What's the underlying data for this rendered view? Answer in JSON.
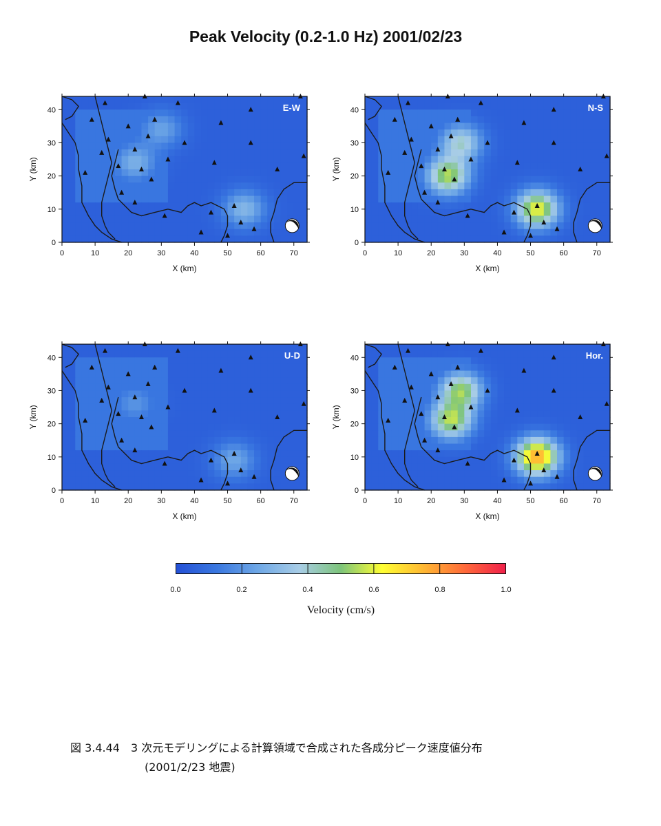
{
  "title": "Peak Velocity (0.2-1.0 Hz) 2001/02/23",
  "chart_data": {
    "type": "heatmap",
    "xlabel": "X (km)",
    "ylabel": "Y (km)",
    "xlim": [
      0,
      74
    ],
    "ylim": [
      0,
      44
    ],
    "x_ticks": [
      "0",
      "10",
      "20",
      "30",
      "40",
      "50",
      "60",
      "70"
    ],
    "y_ticks": [
      "0",
      "10",
      "20",
      "30",
      "40"
    ],
    "panels": [
      {
        "label": "E-W",
        "hotspots": [
          {
            "x": 22,
            "y": 24,
            "v": 0.28
          },
          {
            "x": 30,
            "y": 34,
            "v": 0.24
          },
          {
            "x": 55,
            "y": 10,
            "v": 0.3
          }
        ]
      },
      {
        "label": "N-S",
        "hotspots": [
          {
            "x": 25,
            "y": 20,
            "v": 0.55
          },
          {
            "x": 29,
            "y": 30,
            "v": 0.4
          },
          {
            "x": 52,
            "y": 10,
            "v": 0.62
          }
        ]
      },
      {
        "label": "U-D",
        "hotspots": [
          {
            "x": 22,
            "y": 26,
            "v": 0.2
          },
          {
            "x": 52,
            "y": 9,
            "v": 0.25
          }
        ]
      },
      {
        "label": "Hor.",
        "hotspots": [
          {
            "x": 26,
            "y": 21,
            "v": 0.55
          },
          {
            "x": 29,
            "y": 30,
            "v": 0.52
          },
          {
            "x": 52,
            "y": 10,
            "v": 0.78
          }
        ]
      }
    ],
    "stations": [
      [
        13,
        42
      ],
      [
        25,
        44
      ],
      [
        35,
        42
      ],
      [
        57,
        40
      ],
      [
        72,
        44
      ],
      [
        9,
        37
      ],
      [
        20,
        35
      ],
      [
        28,
        37
      ],
      [
        48,
        36
      ],
      [
        14,
        31
      ],
      [
        26,
        32
      ],
      [
        37,
        30
      ],
      [
        57,
        30
      ],
      [
        12,
        27
      ],
      [
        22,
        28
      ],
      [
        32,
        25
      ],
      [
        46,
        24
      ],
      [
        65,
        22
      ],
      [
        73,
        26
      ],
      [
        7,
        21
      ],
      [
        17,
        23
      ],
      [
        24,
        22
      ],
      [
        27,
        19
      ],
      [
        18,
        15
      ],
      [
        22,
        12
      ],
      [
        31,
        8
      ],
      [
        45,
        9
      ],
      [
        52,
        11
      ],
      [
        54,
        6
      ],
      [
        58,
        4
      ],
      [
        42,
        3
      ],
      [
        50,
        2
      ]
    ],
    "colorbar": {
      "range": [
        0,
        1.0
      ],
      "ticks": [
        "0.0",
        "0.2",
        "0.4",
        "0.6",
        "0.8",
        "1.0"
      ],
      "title": "Velocity (cm/s)",
      "colors": [
        "#2450d6",
        "#3a78e0",
        "#6fa8e6",
        "#a8cde6",
        "#7dc47a",
        "#ffff33",
        "#ffb833",
        "#ff6a3a",
        "#f0204a"
      ]
    }
  },
  "caption": {
    "line1": "図 3.4.44　3 次元モデリングによる計算領域で合成された各成分ピーク速度値分布",
    "line2": "(2001/2/23 地震)"
  }
}
